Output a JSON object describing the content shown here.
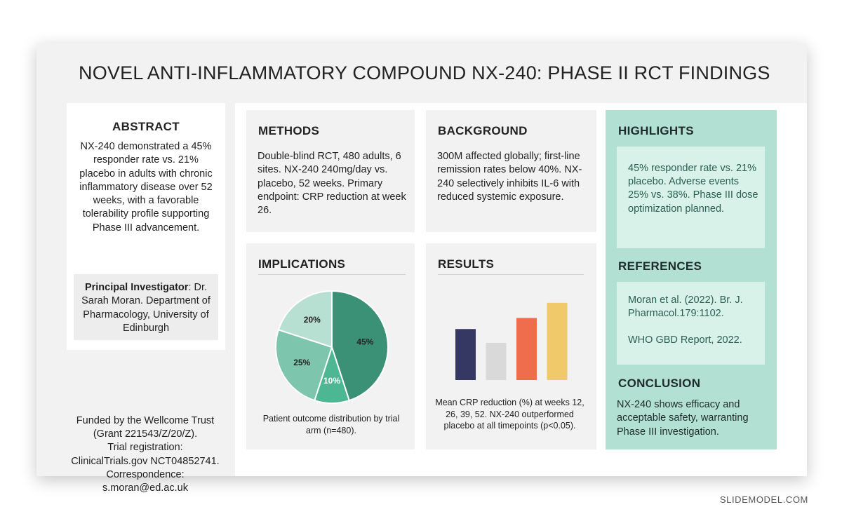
{
  "title": "NOVEL ANTI-INFLAMMATORY COMPOUND NX-240: PHASE II RCT FINDINGS",
  "abstract": {
    "heading": "ABSTRACT",
    "text": "NX-240 demonstrated a 45% responder rate vs. 21% placebo in adults with chronic inflammatory disease over 52 weeks, with a favorable tolerability profile supporting Phase III advancement.",
    "pi_label": "Principal Investigator",
    "pi_text": ": Dr. Sarah Moran. Department of Pharmacology, University of Edinburgh"
  },
  "funding": {
    "lines": [
      "Funded by the Wellcome Trust",
      "(Grant 221543/Z/20/Z).",
      "Trial registration:",
      "ClinicalTrials.gov NCT04852741.",
      "Correspondence:",
      "s.moran@ed.ac.uk"
    ]
  },
  "methods": {
    "heading": "METHODS",
    "text": "Double-blind RCT, 480 adults, 6 sites. NX-240 240mg/day vs. placebo, 52 weeks. Primary endpoint: CRP reduction at week 26."
  },
  "background": {
    "heading": "BACKGROUND",
    "text": "300M affected globally; first-line remission rates below 40%. NX-240 selectively inhibits IL-6 with reduced systemic exposure."
  },
  "implications": {
    "heading": "IMPLICATIONS",
    "caption": "Patient outcome distribution by trial arm (n=480)."
  },
  "results": {
    "heading": "RESULTS",
    "caption": "Mean CRP reduction (%) at weeks 12, 26, 39, 52. NX-240 outperformed placebo at all timepoints (p<0.05)."
  },
  "highlights": {
    "heading": "HIGHLIGHTS",
    "text": "45% responder rate vs. 21% placebo. Adverse events 25% vs. 38%. Phase III dose optimization planned."
  },
  "references": {
    "heading": "REFERENCES",
    "items": [
      "Moran et al. (2022). Br. J. Pharmacol.179:1102.",
      "WHO GBD Report, 2022."
    ]
  },
  "conclusion": {
    "heading": "CONCLUSION",
    "text": "NX-240 shows efficacy and acceptable safety, warranting Phase III investigation."
  },
  "watermark": "SLIDEMODEL.COM",
  "colors": {
    "teal_dark": "#3a9176",
    "teal_mid": "#7dc6ad",
    "teal_light": "#b8e0d2",
    "teal_bright": "#4db793",
    "navy": "#343862",
    "gray_bar": "#d9d9d9",
    "orange": "#ef6c4c",
    "yellow": "#f0c96a",
    "highlight_panel": "#b2e1d3"
  },
  "chart_data": [
    {
      "type": "pie",
      "labels": [
        "45%",
        "10%",
        "25%",
        "20%"
      ],
      "values": [
        45,
        10,
        25,
        20
      ],
      "colors": [
        "#3a9176",
        "#4db793",
        "#7dc6ad",
        "#b8e0d2"
      ],
      "title": ""
    },
    {
      "type": "bar",
      "categories": [
        "",
        "",
        "",
        ""
      ],
      "values": [
        37,
        27,
        45,
        56
      ],
      "colors": [
        "#343862",
        "#d9d9d9",
        "#ef6c4c",
        "#f0c96a"
      ],
      "ylim": [
        0,
        60
      ],
      "grid": false,
      "title": ""
    }
  ]
}
